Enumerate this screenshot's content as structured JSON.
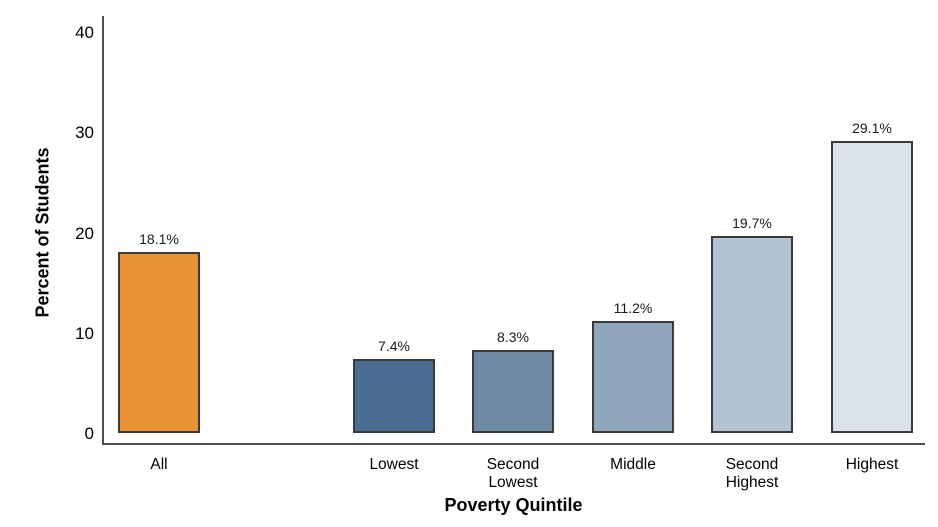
{
  "chart_data": {
    "type": "bar",
    "title": "",
    "xlabel": "Poverty Quintile",
    "ylabel": "Percent of Students",
    "categories": [
      "All",
      "Lowest",
      "Second Lowest",
      "Middle",
      "Second Highest",
      "Highest"
    ],
    "values": [
      18.1,
      7.4,
      8.3,
      11.2,
      19.7,
      29.1
    ],
    "value_labels": [
      "18.1%",
      "7.4%",
      "8.3%",
      "11.2%",
      "19.7%",
      "29.1%"
    ],
    "bar_colors": [
      "#EA9335",
      "#4A6D92",
      "#6E89A4",
      "#90A7BB",
      "#B5C4D2",
      "#DAE1E8"
    ],
    "bar_border_color": "#3A3A3A",
    "yticks": [
      0,
      10,
      20,
      30,
      40
    ],
    "ylim": [
      0,
      40
    ],
    "grid": false,
    "legend_position": "none",
    "axis_color": "#4D4D4D",
    "text_color": "#000000",
    "background_color": "#FFFFFF"
  }
}
